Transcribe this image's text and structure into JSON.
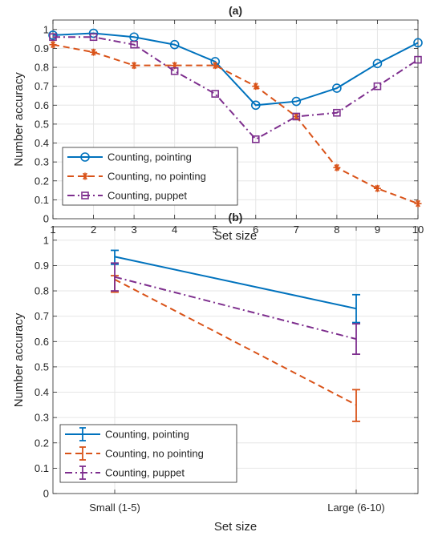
{
  "colors": {
    "pointing": "#0072BD",
    "no_pointing": "#D95319",
    "puppet": "#7E2F8E",
    "grid": "#e6e6e6",
    "axis": "#262626"
  },
  "chart_data": [
    {
      "type": "line",
      "title": "(a)",
      "xlabel": "Set size",
      "ylabel": "Number accuracy",
      "x": [
        1,
        2,
        3,
        4,
        5,
        6,
        7,
        8,
        9,
        10
      ],
      "xlim": [
        1,
        10
      ],
      "ylim": [
        0,
        1.05
      ],
      "xticks": [
        "1",
        "2",
        "3",
        "4",
        "5",
        "6",
        "7",
        "8",
        "9",
        "10"
      ],
      "yticks": [
        "0",
        "0.1",
        "0.2",
        "0.3",
        "0.4",
        "0.5",
        "0.6",
        "0.7",
        "0.8",
        "0.9",
        "1"
      ],
      "grid": true,
      "legend_position": "bottom-left",
      "series": [
        {
          "name": "Counting, pointing",
          "style": "solid",
          "marker": "circle",
          "color": "#0072BD",
          "values": [
            0.97,
            0.98,
            0.96,
            0.92,
            0.83,
            0.6,
            0.62,
            0.69,
            0.82,
            0.93
          ]
        },
        {
          "name": "Counting, no pointing",
          "style": "dashed",
          "marker": "asterisk",
          "color": "#D95319",
          "values": [
            0.92,
            0.88,
            0.81,
            0.81,
            0.81,
            0.7,
            0.54,
            0.27,
            0.16,
            0.08
          ]
        },
        {
          "name": "Counting, puppet",
          "style": "dashdot",
          "marker": "square",
          "color": "#7E2F8E",
          "values": [
            0.96,
            0.96,
            0.92,
            0.78,
            0.66,
            0.42,
            0.54,
            0.56,
            0.7,
            0.84
          ]
        }
      ]
    },
    {
      "type": "line",
      "title": "(b)",
      "xlabel": "Set size",
      "ylabel": "Number accuracy",
      "categories": [
        "Small (1-5)",
        "Large (6-10)"
      ],
      "ylim": [
        0,
        1.05
      ],
      "yticks": [
        "0",
        "0.1",
        "0.2",
        "0.3",
        "0.4",
        "0.5",
        "0.6",
        "0.7",
        "0.8",
        "0.9",
        "1"
      ],
      "grid": true,
      "legend_position": "bottom-left",
      "series": [
        {
          "name": "Counting, pointing",
          "style": "solid",
          "color": "#0072BD",
          "values": [
            0.935,
            0.73
          ],
          "error_low": [
            0.905,
            0.675
          ],
          "error_high": [
            0.96,
            0.785
          ]
        },
        {
          "name": "Counting, no pointing",
          "style": "dashed",
          "color": "#D95319",
          "values": [
            0.845,
            0.35
          ],
          "error_low": [
            0.795,
            0.285
          ],
          "error_high": [
            0.86,
            0.41
          ]
        },
        {
          "name": "Counting, puppet",
          "style": "dashdot",
          "color": "#7E2F8E",
          "values": [
            0.855,
            0.61
          ],
          "error_low": [
            0.8,
            0.55
          ],
          "error_high": [
            0.91,
            0.67
          ]
        }
      ]
    }
  ]
}
